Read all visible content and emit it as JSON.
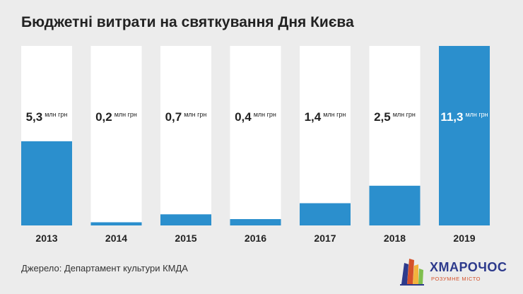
{
  "chart_data": {
    "type": "bar",
    "title": "Бюджетні витрати на святкування Дня Києва",
    "categories": [
      "2013",
      "2014",
      "2015",
      "2016",
      "2017",
      "2018",
      "2019"
    ],
    "values": [
      5.3,
      0.2,
      0.7,
      0.4,
      1.4,
      2.5,
      11.3
    ],
    "value_labels": [
      "5,3",
      "0,2",
      "0,7",
      "0,4",
      "1,4",
      "2,5",
      "11,3"
    ],
    "unit": "млн грн",
    "ylim": [
      0,
      11.3
    ],
    "highlight_index": 6,
    "grid": false,
    "legend": "none"
  },
  "source": "Джерело: Департамент культури КМДА",
  "logo": {
    "name": "ХМАРОЧОС",
    "tagline": "РОЗУМНЕ МІСТО"
  },
  "colors": {
    "background": "#ececec",
    "bar_track": "#ffffff",
    "bar_fill": "#2b8fcd",
    "label_dark": "#222222",
    "label_light": "#ffffff"
  }
}
